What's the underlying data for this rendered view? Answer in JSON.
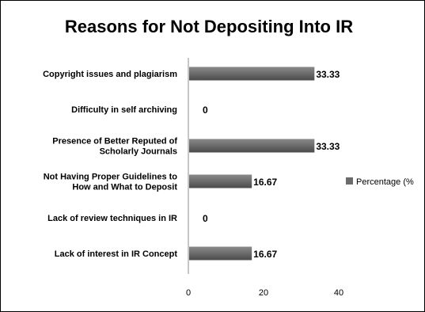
{
  "chart_data": {
    "type": "bar",
    "orientation": "horizontal",
    "title": "Reasons for Not Depositing Into IR",
    "categories": [
      [
        "Copyright issues and plagiarism"
      ],
      [
        "Difficulty in self archiving"
      ],
      [
        "Presence of Better Reputed of",
        "Scholarly Journals"
      ],
      [
        "Not Having Proper Guidelines to",
        "How and What to Deposit"
      ],
      [
        "Lack of review techniques in IR"
      ],
      [
        "Lack of interest in IR Concept"
      ]
    ],
    "series": [
      {
        "name": "Percentage (%",
        "values": [
          33.33,
          0,
          33.33,
          16.67,
          0,
          16.67
        ],
        "data_labels": [
          "33.33",
          "0",
          "33.33",
          "16.67",
          "0",
          "16.67"
        ]
      }
    ],
    "xlim": [
      0,
      40
    ],
    "xticks": [
      "0",
      "20",
      "40"
    ],
    "legend_position": "right",
    "grid": false,
    "bar_color": "#6b6b6b"
  }
}
